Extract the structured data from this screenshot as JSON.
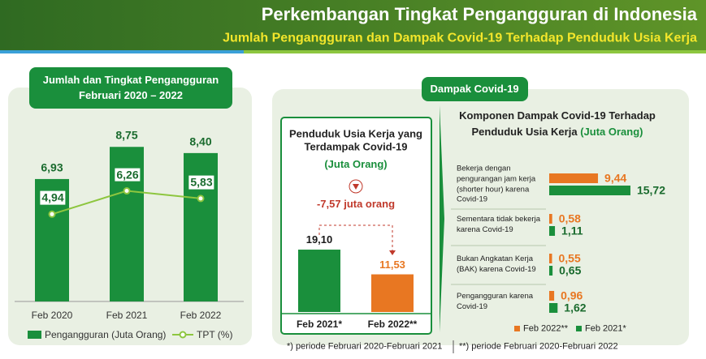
{
  "header": {
    "title": "Perkembangan Tingkat Pengangguran di Indonesia",
    "subtitle": "Jumlah Pengangguran dan Dampak Covid-19 Terhadap Penduduk Usia Kerja"
  },
  "section_label": "Dampak Covid-19",
  "footnotes": [
    "*) periode Februari 2020-Februari 2021",
    "**) periode Februari 2020-Februari 2022"
  ],
  "chart_data": [
    {
      "type": "bar",
      "title": "Jumlah dan Tingkat Pengangguran",
      "subtitle": "Februari 2020 – 2022",
      "categories": [
        "Feb 2020",
        "Feb 2021",
        "Feb 2022"
      ],
      "series": [
        {
          "name": "Pengangguran (Juta Orang)",
          "type": "bar",
          "color": "#1a8f3c",
          "values": [
            6.93,
            8.75,
            8.4
          ],
          "value_labels": [
            "6,93",
            "8,75",
            "8,40"
          ]
        },
        {
          "name": "TPT (%)",
          "type": "line",
          "color": "#8dc63f",
          "values": [
            4.94,
            6.26,
            5.83
          ],
          "value_labels": [
            "4,94",
            "6,26",
            "5,83"
          ]
        }
      ],
      "legend": "bottom"
    },
    {
      "type": "bar",
      "title": "Penduduk Usia Kerja yang Terdampak Covid-19",
      "subtitle": "(Juta Orang)",
      "categories": [
        "Feb 2021*",
        "Feb 2022**"
      ],
      "values": [
        19.1,
        11.53
      ],
      "value_labels": [
        "19,10",
        "11,53"
      ],
      "colors": [
        "#1a8f3c",
        "#e87722"
      ],
      "annotation": "-7,57 juta orang"
    },
    {
      "type": "hbar",
      "title": "Komponen Dampak Covid-19 Terhadap Penduduk Usia Kerja",
      "subtitle": "(Juta Orang)",
      "categories": [
        "Bekerja dengan pengurangan jam kerja (shorter hour) karena Covid-19",
        "Sementara tidak bekerja karena Covid-19",
        "Bukan Angkatan Kerja (BAK) karena Covid-19",
        "Pengangguran karena Covid-19"
      ],
      "series": [
        {
          "name": "Feb 2022**",
          "color": "#e87722",
          "values": [
            9.44,
            0.58,
            0.55,
            0.96
          ],
          "value_labels": [
            "9,44",
            "0,58",
            "0,55",
            "0,96"
          ]
        },
        {
          "name": "Feb 2021*",
          "color": "#1a8f3c",
          "values": [
            15.72,
            1.11,
            0.65,
            1.62
          ],
          "value_labels": [
            "15,72",
            "1,11",
            "0,65",
            "1,62"
          ]
        }
      ],
      "legend": "bottom"
    }
  ]
}
